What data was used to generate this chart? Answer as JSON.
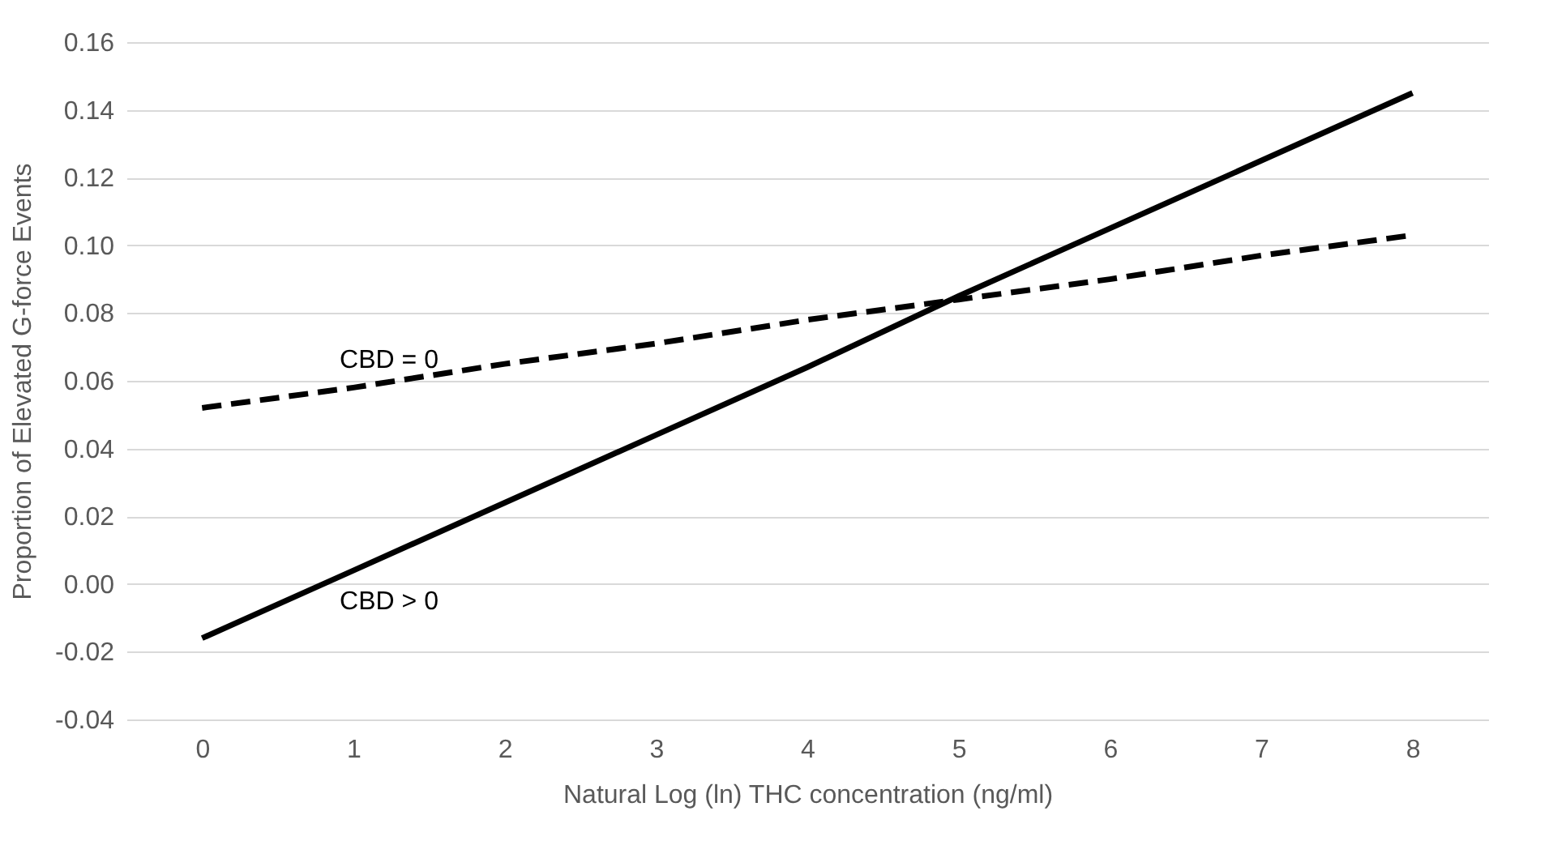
{
  "chart_data": {
    "type": "line",
    "xlabel": "Natural Log (ln) THC concentration (ng/ml)",
    "ylabel": "Proportion of Elevated G-force Events",
    "categories": [
      "0",
      "1",
      "2",
      "3",
      "4",
      "5",
      "6",
      "7",
      "8"
    ],
    "series": [
      {
        "name": "CBD = 0",
        "color": "#000000",
        "line_style": "dashed",
        "values": [
          0.052,
          0.058,
          0.065,
          0.071,
          0.078,
          0.084,
          0.09,
          0.097,
          0.103
        ]
      },
      {
        "name": "CBD > 0",
        "color": "#000000",
        "line_style": "solid",
        "values": [
          -0.016,
          0.004,
          0.024,
          0.044,
          0.064,
          0.085,
          0.105,
          0.125,
          0.145
        ]
      }
    ],
    "ylim": [
      -0.04,
      0.16
    ],
    "yticks": [
      {
        "value": -0.04,
        "label": "-0.04"
      },
      {
        "value": -0.02,
        "label": "-0.02"
      },
      {
        "value": 0,
        "label": "0.00"
      },
      {
        "value": 0.02,
        "label": "0.02"
      },
      {
        "value": 0.04,
        "label": "0.04"
      },
      {
        "value": 0.06,
        "label": "0.06"
      },
      {
        "value": 0.08,
        "label": "0.08"
      },
      {
        "value": 0.1,
        "label": "0.10"
      },
      {
        "value": 0.12,
        "label": "0.12"
      },
      {
        "value": 0.14,
        "label": "0.14"
      },
      {
        "value": 0.16,
        "label": "0.16"
      }
    ],
    "grid": "y",
    "marker": "none"
  }
}
